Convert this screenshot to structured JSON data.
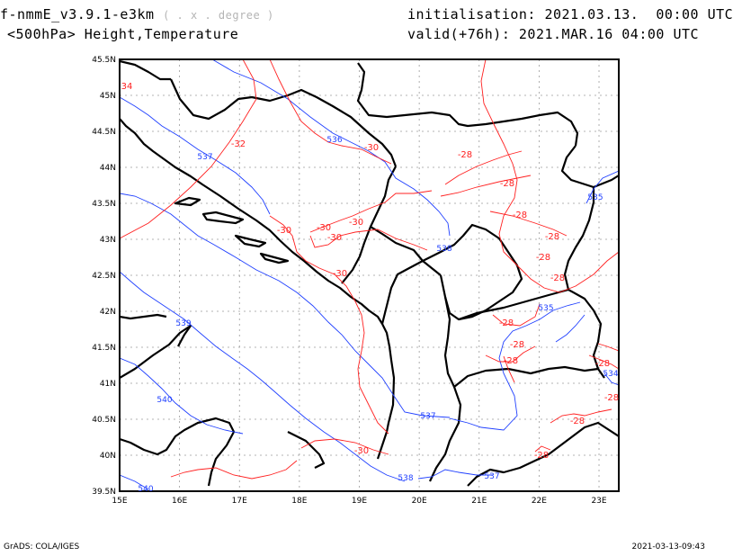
{
  "header": {
    "model": "f-nmmE_v3.9.1-e3km",
    "model_unit": "( . x . degree )",
    "field": "<500hPa> Height,Temperature",
    "init_label": "initialisation:",
    "init_value": "2021.03.13.  00:00 UTC",
    "valid_label": "valid(+76h):",
    "valid_value": "2021.MAR.16 04:00 UTC"
  },
  "axes": {
    "lat_labels": [
      "45.5N",
      "45N",
      "44.5N",
      "44N",
      "43.5N",
      "43N",
      "42.5N",
      "42N",
      "41.5N",
      "41N",
      "40.5N",
      "40N",
      "39.5N"
    ],
    "lon_labels": [
      "15E",
      "16E",
      "17E",
      "18E",
      "19E",
      "20E",
      "21E",
      "22E",
      "23E"
    ]
  },
  "height_labels": [
    "536",
    "537",
    "535",
    "538",
    "539",
    "540",
    "537",
    "538",
    "537",
    "535",
    "534",
    "540"
  ],
  "temp_labels": [
    "34",
    "-32",
    "-30",
    "-28",
    "-28",
    "-30",
    "-30",
    "-30",
    "-30",
    "-28",
    "-28",
    "-28",
    "-28",
    "-28",
    "-28",
    "-28",
    "-30",
    "-28",
    "-28",
    "-28",
    "-30",
    "-28"
  ],
  "footer": {
    "left": "GrADS: COLA/IGES",
    "right": "2021-03-13-09:43"
  },
  "colors": {
    "height_contour": "#2040ff",
    "temp_contour": "#ff2020",
    "coast": "#000000",
    "grid": "#9a9a9a"
  }
}
